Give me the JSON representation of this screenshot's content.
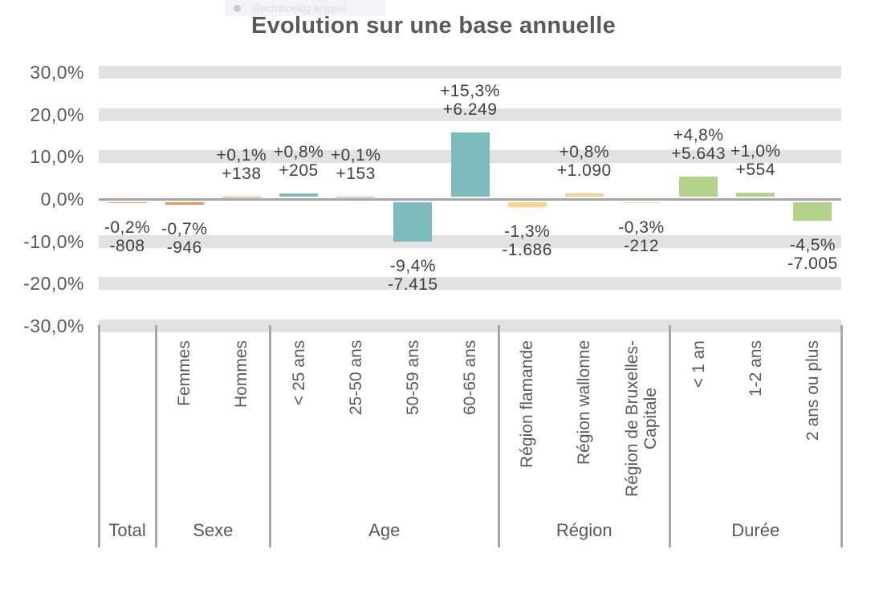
{
  "snip_menu": {
    "label": "Rechthoekig knipsel",
    "bullet_icon": "circle"
  },
  "chart_data": {
    "type": "bar",
    "title": "Evolution sur une base annuelle",
    "value_format": "percent, french decimal comma; absolute counts with dot thousands separator",
    "ylim": [
      -30,
      30
    ],
    "grid": "horizontal gray bands every 10%",
    "legend": "none",
    "y_ticks": [
      {
        "value": 30,
        "label": "30,0%"
      },
      {
        "value": 20,
        "label": "20,0%"
      },
      {
        "value": 10,
        "label": "10,0%"
      },
      {
        "value": 0,
        "label": "0,0%"
      },
      {
        "value": -10,
        "label": "-10,0%"
      },
      {
        "value": -20,
        "label": "-20,0%"
      },
      {
        "value": -30,
        "label": "-30,0%"
      }
    ],
    "groups": [
      {
        "label": "Total",
        "color_key": "orange",
        "bars": [
          {
            "category": "",
            "pct": -0.2,
            "pct_label": "-0,2%",
            "abs_label": "-808"
          }
        ]
      },
      {
        "label": "Sexe",
        "color_key": "orange",
        "bars": [
          {
            "category": "Femmes",
            "pct": -0.7,
            "pct_label": "-0,7%",
            "abs_label": "-946"
          },
          {
            "category": "Hommes",
            "pct": 0.1,
            "pct_label": "+0,1%",
            "abs_label": "+138"
          }
        ]
      },
      {
        "label": "Age",
        "color_key": "teal",
        "bars": [
          {
            "category": "< 25 ans",
            "pct": 0.8,
            "pct_label": "+0,8%",
            "abs_label": "+205"
          },
          {
            "category": "25-50 ans",
            "pct": 0.1,
            "pct_label": "+0,1%",
            "abs_label": "+153"
          },
          {
            "category": "50-59 ans",
            "pct": -9.4,
            "pct_label": "-9,4%",
            "abs_label": "-7.415"
          },
          {
            "category": "60-65 ans",
            "pct": 15.3,
            "pct_label": "+15,3%",
            "abs_label": "+6.249"
          }
        ]
      },
      {
        "label": "Région",
        "color_key": "yellow",
        "bars": [
          {
            "category": "Région flamande",
            "pct": -1.3,
            "pct_label": "-1,3%",
            "abs_label": "-1.686"
          },
          {
            "category": "Région wallonne",
            "pct": 0.8,
            "pct_label": "+0,8%",
            "abs_label": "+1.090"
          },
          {
            "category": "Région de Bruxelles-\nCapitale",
            "pct": -0.3,
            "pct_label": "-0,3%",
            "abs_label": "-212"
          }
        ]
      },
      {
        "label": "Durée",
        "color_key": "green",
        "bars": [
          {
            "category": "< 1 an",
            "pct": 4.8,
            "pct_label": "+4,8%",
            "abs_label": "+5.643"
          },
          {
            "category": "1-2 ans",
            "pct": 1.0,
            "pct_label": "+1,0%",
            "abs_label": "+554"
          },
          {
            "category": "2 ans ou plus",
            "pct": -4.5,
            "pct_label": "-4,5%",
            "abs_label": "-7.005"
          }
        ]
      }
    ],
    "colors": {
      "orange": "#EC9559",
      "teal": "#7CBCBD",
      "yellow": "#FBD38B",
      "green": "#B3D38A",
      "grid_band": "#E2E2E2",
      "axis_line": "#A6A6A6",
      "title_text": "#595959",
      "label_text": "#404040"
    }
  }
}
